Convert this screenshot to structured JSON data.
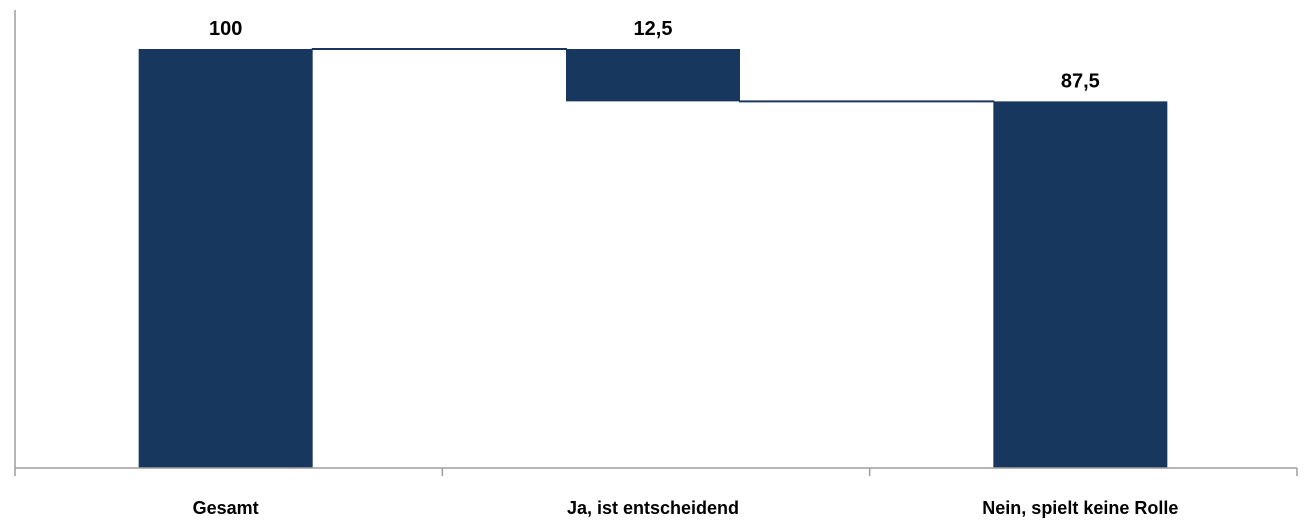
{
  "chart_data": {
    "type": "bar",
    "subtype": "waterfall",
    "categories": [
      "Gesamt",
      "Ja, ist entscheidend",
      "Nein, spielt keine Rolle"
    ],
    "series": [
      {
        "values": [
          100,
          12.5,
          87.5
        ]
      }
    ],
    "floating_ranges": [
      [
        0,
        100
      ],
      [
        87.5,
        100
      ],
      [
        0,
        87.5
      ]
    ],
    "data_labels": [
      "100",
      "12,5",
      "87,5"
    ],
    "bar_color": "#17375e",
    "connector_color": "#17375e",
    "axis_color": "#9e9e9e",
    "ylim": [
      0,
      100
    ],
    "grid": false,
    "legend": "none"
  }
}
